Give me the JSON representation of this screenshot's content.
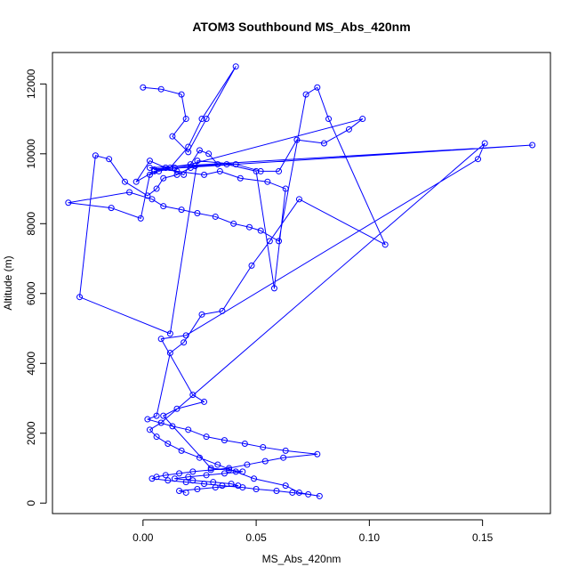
{
  "chart_data": {
    "type": "scatter",
    "connected": true,
    "title": "ATOM3 Southbound MS_Abs_420nm",
    "xlabel": "MS_Abs_420nm",
    "ylabel": "Altitude (m)",
    "xlim": [
      -0.04,
      0.18
    ],
    "ylim": [
      -300,
      12900
    ],
    "xticks": [
      0.0,
      0.05,
      0.1,
      0.15
    ],
    "xtick_labels": [
      "0.00",
      "0.05",
      "0.10",
      "0.15"
    ],
    "yticks": [
      0,
      2000,
      4000,
      6000,
      8000,
      10000,
      12000
    ],
    "ytick_labels": [
      "0",
      "2000",
      "4000",
      "6000",
      "8000",
      "10000",
      "12000"
    ],
    "grid": false,
    "marker": "open-circle",
    "color": "#0000ff",
    "series": [
      {
        "x": [
          0.0,
          0.008,
          0.017,
          0.019,
          0.013,
          0.02,
          0.028,
          0.041,
          0.026,
          0.02,
          0.012,
          0.005,
          -0.003,
          0.003,
          0.01,
          0.018,
          0.025,
          0.029,
          0.033,
          0.021,
          0.015,
          0.009,
          0.006,
          0.002,
          -0.008,
          -0.015,
          -0.021,
          -0.028,
          0.012,
          0.024,
          0.041,
          0.052,
          0.06,
          0.068,
          0.08,
          0.091,
          0.097,
          0.021,
          0.01,
          0.005,
          0.172,
          0.003,
          0.015,
          0.027,
          0.034,
          0.043,
          0.055,
          0.063,
          0.058,
          0.05,
          0.037,
          0.023,
          0.014,
          0.007,
          0.003,
          -0.001,
          -0.014,
          -0.033,
          -0.006,
          0.004,
          0.009,
          0.017,
          0.024,
          0.032,
          0.04,
          0.047,
          0.052,
          0.06,
          0.072,
          0.077,
          0.082,
          0.107,
          0.069,
          0.056,
          0.048,
          0.035,
          0.026,
          0.018,
          0.012,
          0.006,
          0.002,
          0.013,
          0.02,
          0.028,
          0.036,
          0.045,
          0.053,
          0.063,
          0.077,
          0.062,
          0.054,
          0.046,
          0.038,
          0.03,
          0.022,
          0.016,
          0.01,
          0.006,
          0.004,
          0.011,
          0.019,
          0.027,
          0.035,
          0.044,
          0.05,
          0.059,
          0.066,
          0.073,
          0.078,
          0.069,
          0.063,
          0.049,
          0.041,
          0.033,
          0.025,
          0.017,
          0.011,
          0.006,
          0.003,
          0.008,
          0.151,
          0.148,
          0.019,
          0.008,
          0.022,
          0.027,
          0.015,
          0.009,
          0.03,
          0.038,
          0.044,
          0.036,
          0.028,
          0.02,
          0.014,
          0.022,
          0.031,
          0.039,
          0.042,
          0.032,
          0.024,
          0.016,
          0.019
        ],
        "y": [
          11900,
          11850,
          11700,
          11000,
          10500,
          10050,
          11000,
          12500,
          11000,
          10200,
          9600,
          9500,
          9200,
          9800,
          9600,
          9400,
          10100,
          10000,
          9700,
          9600,
          9400,
          9300,
          9000,
          8800,
          9200,
          9850,
          9950,
          5900,
          4850,
          9800,
          9700,
          9500,
          9500,
          10400,
          10300,
          10700,
          11000,
          9700,
          9600,
          9550,
          10250,
          9600,
          9500,
          9400,
          9500,
          9300,
          9200,
          9000,
          6150,
          9500,
          9700,
          9650,
          9600,
          9500,
          9400,
          8150,
          8450,
          8600,
          8900,
          8700,
          8500,
          8400,
          8300,
          8200,
          8000,
          7900,
          7800,
          7500,
          11700,
          11900,
          11000,
          7400,
          8700,
          7500,
          6800,
          5500,
          5400,
          4600,
          4300,
          2500,
          2400,
          2200,
          2100,
          1900,
          1800,
          1700,
          1600,
          1500,
          1400,
          1300,
          1200,
          1100,
          1000,
          950,
          900,
          850,
          800,
          750,
          700,
          650,
          600,
          550,
          500,
          450,
          400,
          350,
          300,
          250,
          200,
          300,
          500,
          700,
          900,
          1100,
          1300,
          1500,
          1700,
          1900,
          2100,
          2300,
          10300,
          9850,
          4800,
          4700,
          3100,
          2900,
          2700,
          2500,
          1000,
          950,
          900,
          850,
          800,
          750,
          700,
          650,
          600,
          550,
          500,
          450,
          400,
          350,
          300
        ]
      }
    ]
  }
}
